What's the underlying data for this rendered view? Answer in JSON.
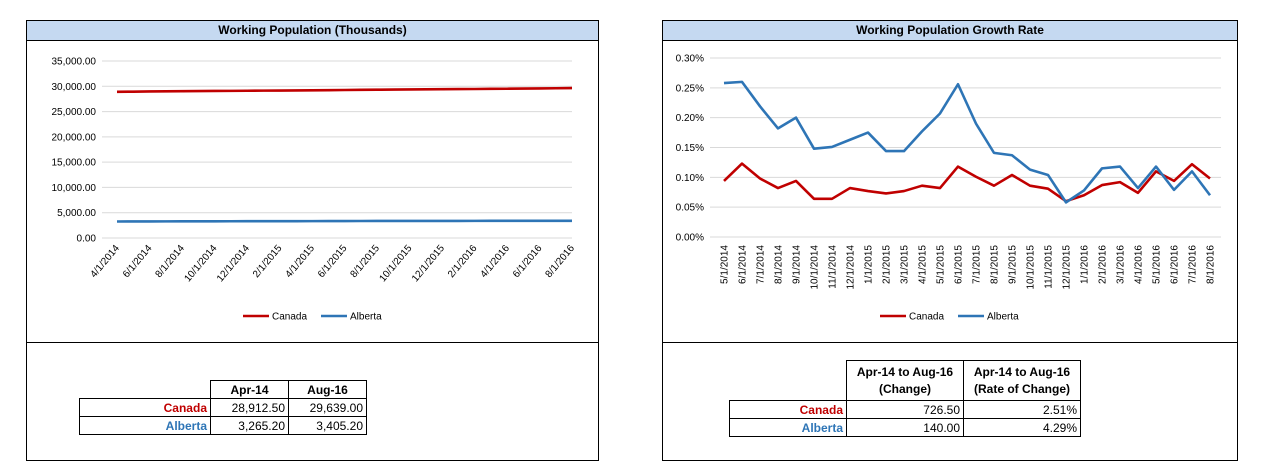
{
  "colors": {
    "canada": "#c00000",
    "alberta": "#2e75b6",
    "title_bg": "#c5d9f1",
    "grid": "#d9d9d9"
  },
  "chart_data": [
    {
      "type": "line",
      "title": "Working Population (Thousands)",
      "x_tick_labels": [
        "4/1/2014",
        "6/1/2014",
        "8/1/2014",
        "10/1/2014",
        "12/1/2014",
        "2/1/2015",
        "4/1/2015",
        "6/1/2015",
        "8/1/2015",
        "10/1/2015",
        "12/1/2015",
        "2/1/2016",
        "4/1/2016",
        "6/1/2016",
        "8/1/2016"
      ],
      "y_tick_labels": [
        "0.00",
        "5,000.00",
        "10,000.00",
        "15,000.00",
        "20,000.00",
        "25,000.00",
        "30,000.00",
        "35,000.00"
      ],
      "ylim": [
        0,
        35000
      ],
      "grid": true,
      "legend": "bottom",
      "x": [
        "4/1/2014",
        "5/1/2014",
        "6/1/2014",
        "7/1/2014",
        "8/1/2014",
        "9/1/2014",
        "10/1/2014",
        "11/1/2014",
        "12/1/2014",
        "1/1/2015",
        "2/1/2015",
        "3/1/2015",
        "4/1/2015",
        "5/1/2015",
        "6/1/2015",
        "7/1/2015",
        "8/1/2015",
        "9/1/2015",
        "10/1/2015",
        "11/1/2015",
        "12/1/2015",
        "1/1/2016",
        "2/1/2016",
        "3/1/2016",
        "4/1/2016",
        "5/1/2016",
        "6/1/2016",
        "7/1/2016",
        "8/1/2016"
      ],
      "series": [
        {
          "name": "Canada",
          "values": [
            28912.5,
            28940,
            28975,
            29004,
            29028,
            29055,
            29074,
            29093,
            29117,
            29140,
            29162,
            29184,
            29209,
            29233,
            29267,
            29298,
            29323,
            29354,
            29379,
            29402,
            29420,
            29441,
            29466,
            29493,
            29515,
            29546,
            29573,
            29609,
            29639
          ]
        },
        {
          "name": "Alberta",
          "values": [
            3265.2,
            3273.6,
            3282.1,
            3289.3,
            3295.3,
            3301.9,
            3306.8,
            3311.8,
            3317.2,
            3322.9,
            3327.7,
            3332.5,
            3338.5,
            3345.4,
            3354.0,
            3360.4,
            3365.1,
            3369.7,
            3373.5,
            3377.0,
            3379.0,
            3381.6,
            3385.5,
            3389.5,
            3392.3,
            3396.3,
            3399.0,
            3402.8,
            3405.2
          ]
        }
      ]
    },
    {
      "type": "line",
      "title": "Working Population Growth Rate",
      "y_tick_labels": [
        "0.00%",
        "0.05%",
        "0.10%",
        "0.15%",
        "0.20%",
        "0.25%",
        "0.30%"
      ],
      "ylim": [
        0,
        0.3
      ],
      "y_unit": "percent",
      "grid": true,
      "legend": "bottom",
      "x": [
        "5/1/2014",
        "6/1/2014",
        "7/1/2014",
        "8/1/2014",
        "9/1/2014",
        "10/1/2014",
        "11/1/2014",
        "12/1/2014",
        "1/1/2015",
        "2/1/2015",
        "3/1/2015",
        "4/1/2015",
        "5/1/2015",
        "6/1/2015",
        "7/1/2015",
        "8/1/2015",
        "9/1/2015",
        "10/1/2015",
        "11/1/2015",
        "12/1/2015",
        "1/1/2016",
        "2/1/2016",
        "3/1/2016",
        "4/1/2016",
        "5/1/2016",
        "6/1/2016",
        "7/1/2016",
        "8/1/2016"
      ],
      "series": [
        {
          "name": "Canada",
          "values": [
            0.094,
            0.123,
            0.098,
            0.082,
            0.094,
            0.064,
            0.064,
            0.082,
            0.077,
            0.073,
            0.077,
            0.086,
            0.082,
            0.118,
            0.101,
            0.086,
            0.104,
            0.086,
            0.081,
            0.06,
            0.07,
            0.087,
            0.092,
            0.074,
            0.11,
            0.094,
            0.122,
            0.098
          ]
        },
        {
          "name": "Alberta",
          "values": [
            0.258,
            0.26,
            0.219,
            0.182,
            0.2,
            0.148,
            0.151,
            0.163,
            0.175,
            0.144,
            0.144,
            0.177,
            0.207,
            0.256,
            0.19,
            0.141,
            0.137,
            0.113,
            0.104,
            0.058,
            0.078,
            0.115,
            0.118,
            0.082,
            0.118,
            0.079,
            0.11,
            0.07
          ]
        }
      ]
    }
  ],
  "left_table": {
    "headers": [
      "Apr-14",
      "Aug-16"
    ],
    "rows": [
      {
        "label": "Canada",
        "values": [
          "28,912.50",
          "29,639.00"
        ]
      },
      {
        "label": "Alberta",
        "values": [
          "3,265.20",
          "3,405.20"
        ]
      }
    ]
  },
  "right_table": {
    "headers": [
      {
        "line1": "Apr-14 to Aug-16",
        "line2": "(Change)"
      },
      {
        "line1": "Apr-14 to Aug-16",
        "line2": "(Rate of Change)"
      }
    ],
    "rows": [
      {
        "label": "Canada",
        "values": [
          "726.50",
          "2.51%"
        ]
      },
      {
        "label": "Alberta",
        "values": [
          "140.00",
          "4.29%"
        ]
      }
    ]
  }
}
